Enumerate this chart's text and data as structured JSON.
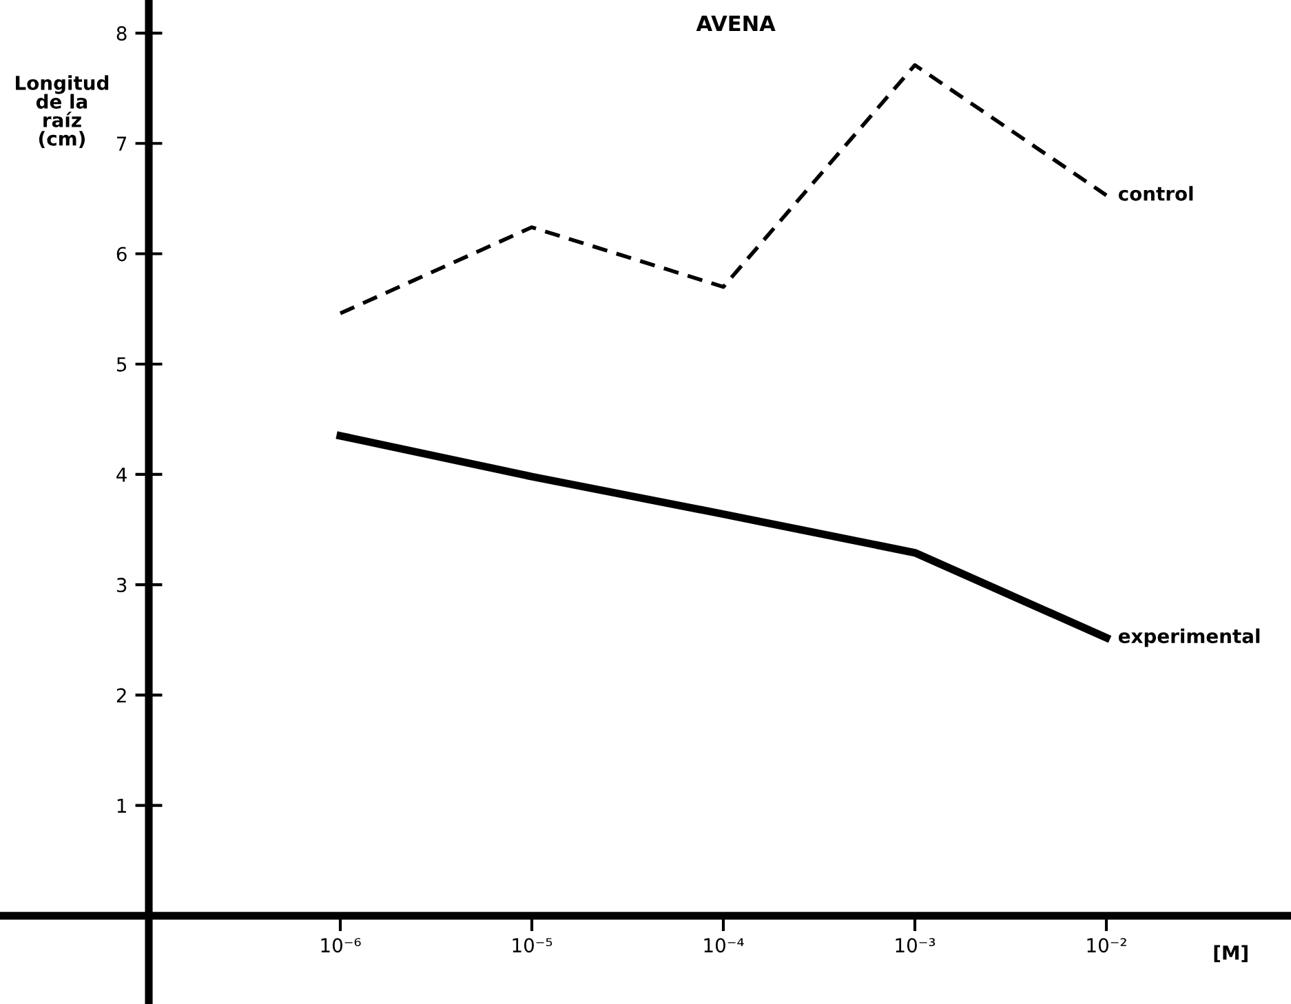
{
  "chart_data": {
    "type": "line",
    "title": "AVENA",
    "xlabel": "[M]",
    "ylabel": "Longitud\nde la\nraíz\n(cm)",
    "categories": [
      "10⁻⁶",
      "10⁻⁵",
      "10⁻⁴",
      "10⁻³",
      "10⁻²"
    ],
    "ylim": [
      -0.8,
      8.3
    ],
    "yticks": [
      1,
      2,
      3,
      4,
      5,
      6,
      7,
      8
    ],
    "grid": false,
    "legend": false,
    "marker": "none",
    "series": [
      {
        "name": "control",
        "color": "#000000",
        "line_style": "dashed",
        "values": [
          5.46,
          6.24,
          5.7,
          7.71,
          6.53
        ]
      },
      {
        "name": "experimental",
        "color": "#000000",
        "line_style": "solid",
        "values": [
          4.35,
          3.98,
          3.64,
          3.29,
          2.52
        ]
      }
    ]
  }
}
